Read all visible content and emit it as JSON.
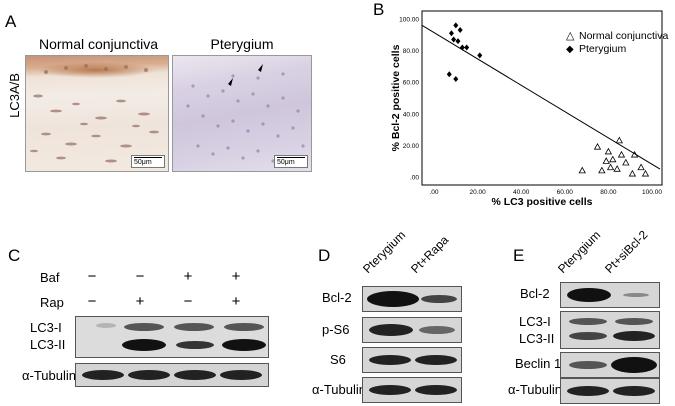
{
  "panel_a": {
    "letter": "A",
    "ylabel": "LC3A/B",
    "left_title": "Normal conjunctiva",
    "right_title": "Pterygium",
    "scalebar_left": "50μm",
    "scalebar_right": "50μm"
  },
  "panel_b": {
    "letter": "B",
    "chart_data": {
      "type": "scatter",
      "xlabel": "% LC3 positive cells",
      "ylabel": "% Bcl-2 positive cells",
      "xlim": [
        0,
        100
      ],
      "ylim": [
        0,
        100
      ],
      "xticks": [
        ".00",
        "20.00",
        "40.00",
        "60.00",
        "80.00",
        "100.00"
      ],
      "yticks": [
        ".00",
        "20.00",
        "40.00",
        "60.00",
        "80.00",
        "100.00"
      ],
      "legend_position": "top-right",
      "legend_symbols": [
        "△",
        "◆"
      ],
      "series": [
        {
          "name": "Normal conjunctiva",
          "marker": "open-triangle",
          "points": [
            [
              68,
              4
            ],
            [
              75,
              19
            ],
            [
              77,
              4
            ],
            [
              79,
              10
            ],
            [
              80,
              16
            ],
            [
              81,
              6
            ],
            [
              82,
              11
            ],
            [
              84,
              5
            ],
            [
              85,
              23
            ],
            [
              86,
              14
            ],
            [
              88,
              9
            ],
            [
              91,
              2
            ],
            [
              92,
              14
            ],
            [
              95,
              6
            ],
            [
              97,
              2
            ]
          ]
        },
        {
          "name": "Pterygium",
          "marker": "filled-diamond",
          "points": [
            [
              7,
              65
            ],
            [
              8,
              91
            ],
            [
              9,
              87
            ],
            [
              10,
              62
            ],
            [
              10,
              96
            ],
            [
              11,
              86
            ],
            [
              12,
              93
            ],
            [
              13,
              82
            ],
            [
              15,
              82
            ],
            [
              21,
              77
            ]
          ]
        }
      ],
      "fit_line": [
        [
          0,
          96
        ],
        [
          100,
          5
        ]
      ]
    }
  },
  "panel_c": {
    "letter": "C",
    "row_labels": [
      "Baf",
      "Rap"
    ],
    "baf_signs": [
      "−",
      "−",
      "+",
      "+"
    ],
    "rap_signs": [
      "−",
      "+",
      "−",
      "+"
    ],
    "blot1_labels": [
      "LC3-I",
      "LC3-II"
    ],
    "blot2_label": "α-Tubulin"
  },
  "panel_d": {
    "letter": "D",
    "lanes": [
      "Pterygium",
      "Pt+Rapa"
    ],
    "blots": [
      "Bcl-2",
      "p-S6",
      "S6",
      "α-Tubulin"
    ]
  },
  "panel_e": {
    "letter": "E",
    "lanes": [
      "Pterygium",
      "Pt+siBcl-2"
    ],
    "blots": [
      "Bcl-2",
      "LC3-I",
      "LC3-II",
      "Beclin 1",
      "α-Tubulin"
    ]
  }
}
